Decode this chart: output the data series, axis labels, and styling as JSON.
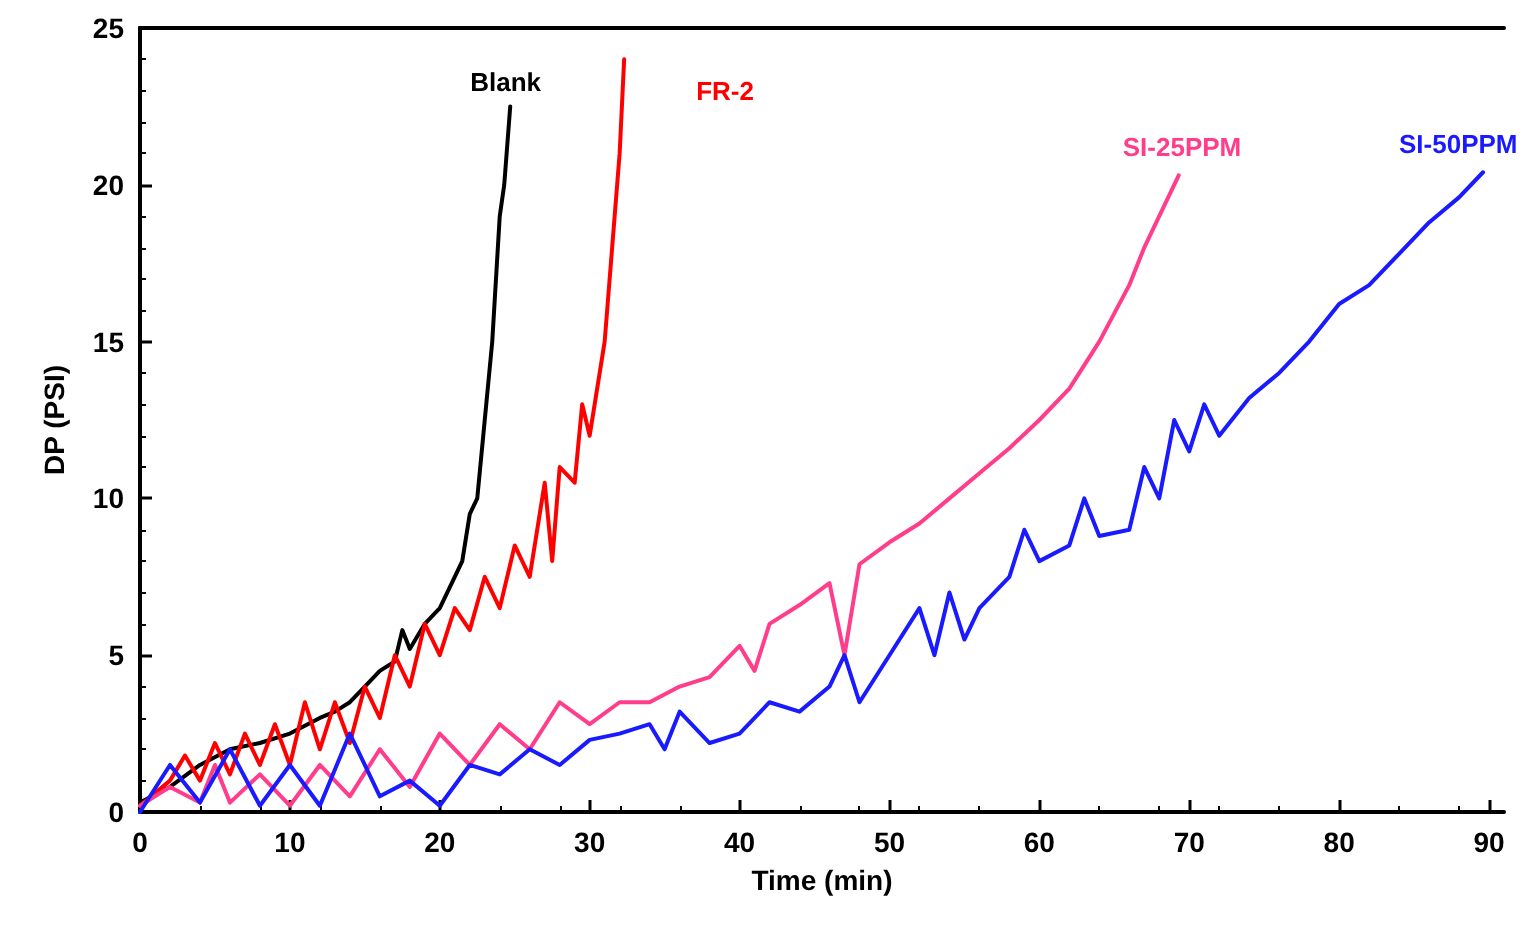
{
  "chart_data": {
    "type": "line",
    "xlabel": "Time (min)",
    "ylabel": "DP (PSI)",
    "xlim": [
      0,
      91
    ],
    "xticks": [
      0,
      10,
      20,
      30,
      40,
      50,
      60,
      70,
      80,
      90
    ],
    "ylim": [
      0,
      25
    ],
    "yticks": [
      0,
      5,
      10,
      15,
      20,
      25
    ],
    "grid": false,
    "legend": false,
    "marker": "none",
    "line_style": "solid",
    "series": [
      {
        "name": "Blank",
        "color": "#000000",
        "x": [
          0,
          2,
          4,
          6,
          8,
          10,
          12,
          13,
          14,
          15,
          16,
          17,
          17.5,
          18,
          19,
          20,
          21,
          21.5,
          22,
          22.5,
          23,
          23.5,
          24,
          24.3,
          24.7
        ],
        "values": [
          0.3,
          0.8,
          1.5,
          2,
          2.2,
          2.5,
          3,
          3.2,
          3.5,
          4,
          4.5,
          4.8,
          5.8,
          5.2,
          6,
          6.5,
          7.5,
          8,
          9.5,
          10,
          12.5,
          15,
          19,
          20,
          22.5
        ]
      },
      {
        "name": "FR-2",
        "color": "#ff0000",
        "x": [
          0,
          2,
          3,
          4,
          5,
          6,
          7,
          8,
          9,
          10,
          11,
          12,
          13,
          14,
          15,
          16,
          17,
          18,
          19,
          20,
          21,
          22,
          23,
          24,
          25,
          26,
          27,
          27.5,
          28,
          29,
          29.5,
          30,
          31,
          31.5,
          32,
          32.3
        ],
        "values": [
          0.2,
          1,
          1.8,
          1,
          2.2,
          1.2,
          2.5,
          1.5,
          2.8,
          1.5,
          3.5,
          2,
          3.5,
          2.2,
          4,
          3,
          5,
          4,
          6,
          5,
          6.5,
          5.8,
          7.5,
          6.5,
          8.5,
          7.5,
          10.5,
          8,
          11,
          10.5,
          13,
          12,
          15,
          18,
          21,
          24
        ]
      },
      {
        "name": "SI-25PPM",
        "color": "#ff3d8b",
        "x": [
          0,
          2,
          4,
          5,
          6,
          8,
          10,
          12,
          14,
          16,
          18,
          20,
          22,
          24,
          26,
          28,
          30,
          32,
          34,
          36,
          38,
          40,
          41,
          42,
          44,
          46,
          47,
          48,
          50,
          52,
          54,
          56,
          58,
          60,
          62,
          64,
          66,
          67,
          68,
          69.3
        ],
        "values": [
          0.2,
          0.8,
          0.3,
          1.5,
          0.3,
          1.2,
          0.2,
          1.5,
          0.5,
          2,
          0.8,
          2.5,
          1.5,
          2.8,
          2,
          3.5,
          2.8,
          3.5,
          3.5,
          4,
          4.3,
          5.3,
          4.5,
          6,
          6.6,
          7.3,
          5,
          7.9,
          8.6,
          9.2,
          10,
          10.8,
          11.6,
          12.5,
          13.5,
          15,
          16.8,
          18,
          19,
          20.3
        ]
      },
      {
        "name": "SI-50PPM",
        "color": "#1a1aff",
        "x": [
          0,
          2,
          4,
          6,
          8,
          10,
          12,
          14,
          16,
          18,
          20,
          22,
          24,
          26,
          28,
          30,
          32,
          34,
          35,
          36,
          38,
          40,
          42,
          44,
          46,
          47,
          48,
          50,
          52,
          53,
          54,
          55,
          56,
          58,
          59,
          60,
          62,
          63,
          64,
          66,
          67,
          68,
          69,
          70,
          71,
          72,
          74,
          76,
          78,
          80,
          82,
          84,
          86,
          88,
          89.6
        ],
        "values": [
          0,
          1.5,
          0.3,
          2,
          0.2,
          1.5,
          0.2,
          2.5,
          0.5,
          1,
          0.2,
          1.5,
          1.2,
          2,
          1.5,
          2.3,
          2.5,
          2.8,
          2,
          3.2,
          2.2,
          2.5,
          3.5,
          3.2,
          4,
          5,
          3.5,
          5,
          6.5,
          5,
          7,
          5.5,
          6.5,
          7.5,
          9,
          8,
          8.5,
          10,
          8.8,
          9,
          11,
          10,
          12.5,
          11.5,
          13,
          12,
          13.2,
          14,
          15,
          16.2,
          16.8,
          17.8,
          18.8,
          19.6,
          20.4
        ]
      }
    ]
  }
}
